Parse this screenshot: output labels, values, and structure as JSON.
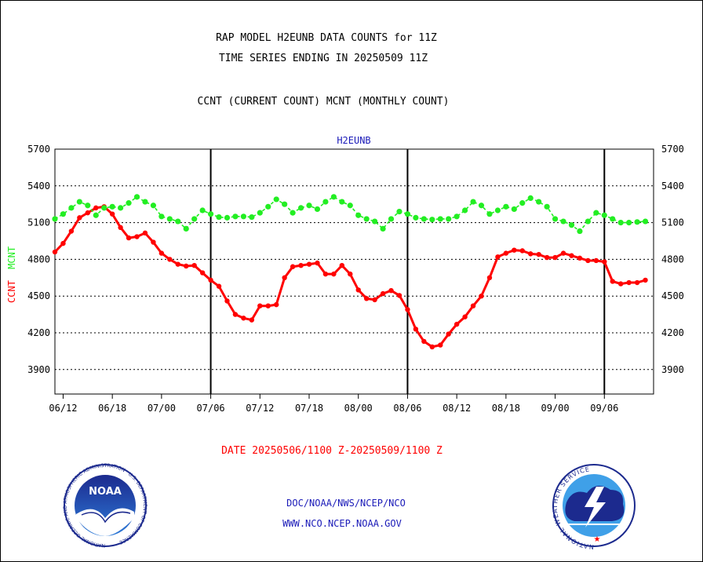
{
  "title_line1": "RAP MODEL H2EUNB DATA COUNTS for 11Z",
  "title_line2": "TIME SERIES ENDING IN 20250509 11Z",
  "title_line3": "CCNT (CURRENT COUNT) MCNT (MONTHLY COUNT)",
  "date_range": "DATE 20250506/1100 Z-20250509/1100 Z",
  "footer_org": "DOC/NOAA/NWS/NCEP/NCO",
  "footer_url": "WWW.NCO.NCEP.NOAA.GOV",
  "left_logo": {
    "icon": "noaa-logo-icon",
    "center_text": "NOAA",
    "ring_text": "NATIONAL OCEANIC AND ATMOSPHERIC ADMINISTRATION · U.S. DEPARTMENT OF COMMERCE"
  },
  "right_logo": {
    "icon": "national-weather-service-logo-icon",
    "ring_text": "NATIONAL WEATHER SERVICE"
  },
  "colors": {
    "ccnt": "#ff0000",
    "mcnt": "#22ee22",
    "panel_label": "#1a1ab8",
    "date_label": "#ff0000"
  },
  "chart_data": {
    "type": "line",
    "panel_label": "H2EUNB",
    "ylabel_ccnt": "CCNT",
    "ylabel_mcnt": "MCNT",
    "ylim": [
      3700,
      5700
    ],
    "yticks": [
      3900,
      4200,
      4500,
      4800,
      5100,
      5400,
      5700
    ],
    "grid_y": "dotted",
    "x_range": [
      0,
      73
    ],
    "x_tick_positions": [
      1,
      7,
      13,
      19,
      25,
      31,
      37,
      43,
      49,
      55,
      61,
      67
    ],
    "x_tick_labels": [
      "06/12",
      "06/18",
      "07/00",
      "07/06",
      "07/12",
      "07/18",
      "08/00",
      "08/06",
      "08/12",
      "08/18",
      "09/00",
      "09/06"
    ],
    "day_boundaries": [
      19,
      43,
      67
    ],
    "series": [
      {
        "name": "CCNT",
        "x": [
          0,
          1,
          2,
          3,
          4,
          5,
          6,
          7,
          8,
          9,
          10,
          11,
          12,
          13,
          14,
          15,
          16,
          17,
          18,
          19,
          20,
          21,
          22,
          23,
          24,
          25,
          26,
          27,
          28,
          29,
          30,
          31,
          32,
          33,
          34,
          35,
          36,
          37,
          38,
          39,
          40,
          41,
          42,
          43,
          44,
          45,
          46,
          47,
          48,
          49,
          50,
          51,
          52,
          53,
          54,
          55,
          56,
          57,
          58,
          59,
          60,
          61,
          62,
          63,
          64,
          65,
          66,
          67,
          68,
          69,
          70,
          71,
          72
        ],
        "values": [
          4860,
          4930,
          5030,
          5140,
          5180,
          5220,
          5230,
          5170,
          5060,
          4975,
          4985,
          5015,
          4940,
          4850,
          4800,
          4760,
          4745,
          4750,
          4690,
          4630,
          4580,
          4460,
          4350,
          4320,
          4305,
          4420,
          4420,
          4430,
          4650,
          4740,
          4750,
          4760,
          4770,
          4680,
          4680,
          4750,
          4680,
          4550,
          4480,
          4470,
          4520,
          4545,
          4505,
          4390,
          4230,
          4130,
          4085,
          4100,
          4190,
          4270,
          4330,
          4420,
          4500,
          4650,
          4820,
          4850,
          4875,
          4870,
          4845,
          4840,
          4815,
          4815,
          4850,
          4830,
          4810,
          4790,
          4790,
          4780,
          4620,
          4600,
          4610,
          4610,
          4630
        ]
      },
      {
        "name": "MCNT",
        "x": [
          0,
          1,
          2,
          3,
          4,
          5,
          6,
          7,
          8,
          9,
          10,
          11,
          12,
          13,
          14,
          15,
          16,
          17,
          18,
          19,
          20,
          21,
          22,
          23,
          24,
          25,
          26,
          27,
          28,
          29,
          30,
          31,
          32,
          33,
          34,
          35,
          36,
          37,
          38,
          39,
          40,
          41,
          42,
          43,
          44,
          45,
          46,
          47,
          48,
          49,
          50,
          51,
          52,
          53,
          54,
          55,
          56,
          57,
          58,
          59,
          60,
          61,
          62,
          63,
          64,
          65,
          66,
          67,
          68,
          69,
          70,
          71,
          72
        ],
        "values": [
          5130,
          5170,
          5220,
          5270,
          5240,
          5160,
          5220,
          5230,
          5220,
          5260,
          5310,
          5270,
          5240,
          5150,
          5130,
          5110,
          5050,
          5130,
          5200,
          5170,
          5145,
          5140,
          5150,
          5150,
          5145,
          5180,
          5230,
          5290,
          5250,
          5180,
          5220,
          5240,
          5210,
          5270,
          5310,
          5270,
          5240,
          5160,
          5130,
          5110,
          5050,
          5130,
          5190,
          5170,
          5140,
          5130,
          5125,
          5130,
          5130,
          5150,
          5200,
          5270,
          5240,
          5170,
          5200,
          5230,
          5210,
          5260,
          5300,
          5270,
          5230,
          5130,
          5110,
          5080,
          5030,
          5110,
          5180,
          5160,
          5130,
          5100,
          5100,
          5105,
          5110
        ]
      }
    ]
  }
}
